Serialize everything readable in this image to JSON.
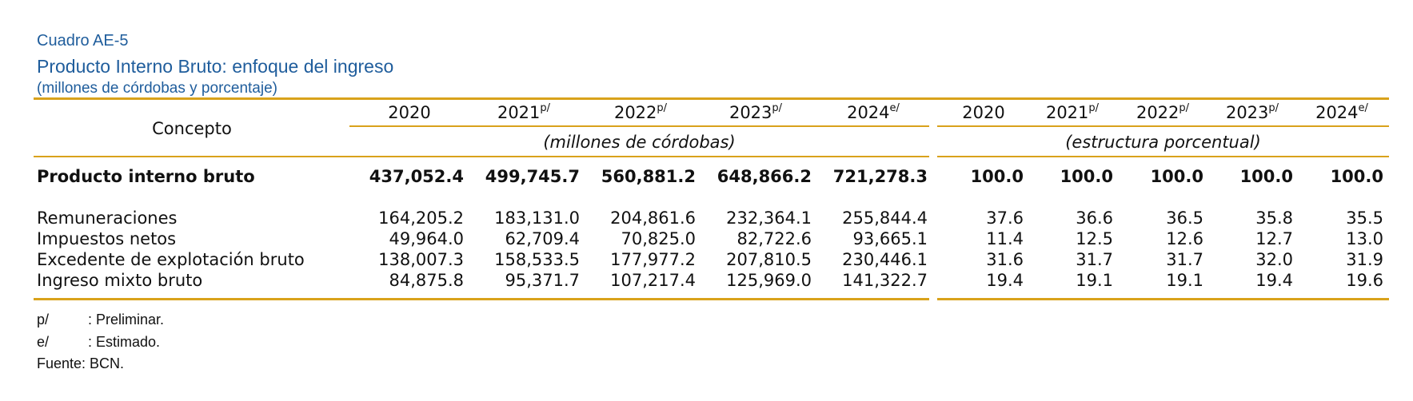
{
  "caption": "Cuadro AE-5",
  "title": "Producto Interno Bruto: enfoque del ingreso",
  "subtitle": "(millones de córdobas y porcentaje)",
  "concept_header": "Concepto",
  "years": [
    {
      "year": "2020",
      "mark": ""
    },
    {
      "year": "2021",
      "mark": "p/"
    },
    {
      "year": "2022",
      "mark": "p/"
    },
    {
      "year": "2023",
      "mark": "p/"
    },
    {
      "year": "2024",
      "mark": "e/"
    }
  ],
  "group_left": "(millones de córdobas)",
  "group_right": "(estructura porcentual)",
  "total_row": {
    "label": "Producto interno bruto",
    "values": [
      "437,052.4",
      "499,745.7",
      "560,881.2",
      "648,866.2",
      "721,278.3"
    ],
    "pct": [
      "100.0",
      "100.0",
      "100.0",
      "100.0",
      "100.0"
    ]
  },
  "rows": [
    {
      "label": "Remuneraciones",
      "values": [
        "164,205.2",
        "183,131.0",
        "204,861.6",
        "232,364.1",
        "255,844.4"
      ],
      "pct": [
        "37.6",
        "36.6",
        "36.5",
        "35.8",
        "35.5"
      ]
    },
    {
      "label": "Impuestos netos",
      "values": [
        "49,964.0",
        "62,709.4",
        "70,825.0",
        "82,722.6",
        "93,665.1"
      ],
      "pct": [
        "11.4",
        "12.5",
        "12.6",
        "12.7",
        "13.0"
      ]
    },
    {
      "label": "Excedente de explotación bruto",
      "values": [
        "138,007.3",
        "158,533.5",
        "177,977.2",
        "207,810.5",
        "230,446.1"
      ],
      "pct": [
        "31.6",
        "31.7",
        "31.7",
        "32.0",
        "31.9"
      ]
    },
    {
      "label": "Ingreso mixto bruto",
      "values": [
        "84,875.8",
        "95,371.7",
        "107,217.4",
        "125,969.0",
        "141,322.7"
      ],
      "pct": [
        "19.4",
        "19.1",
        "19.1",
        "19.4",
        "19.6"
      ]
    }
  ],
  "notes": [
    {
      "key": "p/",
      "text": ": Preliminar."
    },
    {
      "key": "e/",
      "text": ": Estimado."
    }
  ],
  "source": "Fuente: BCN."
}
